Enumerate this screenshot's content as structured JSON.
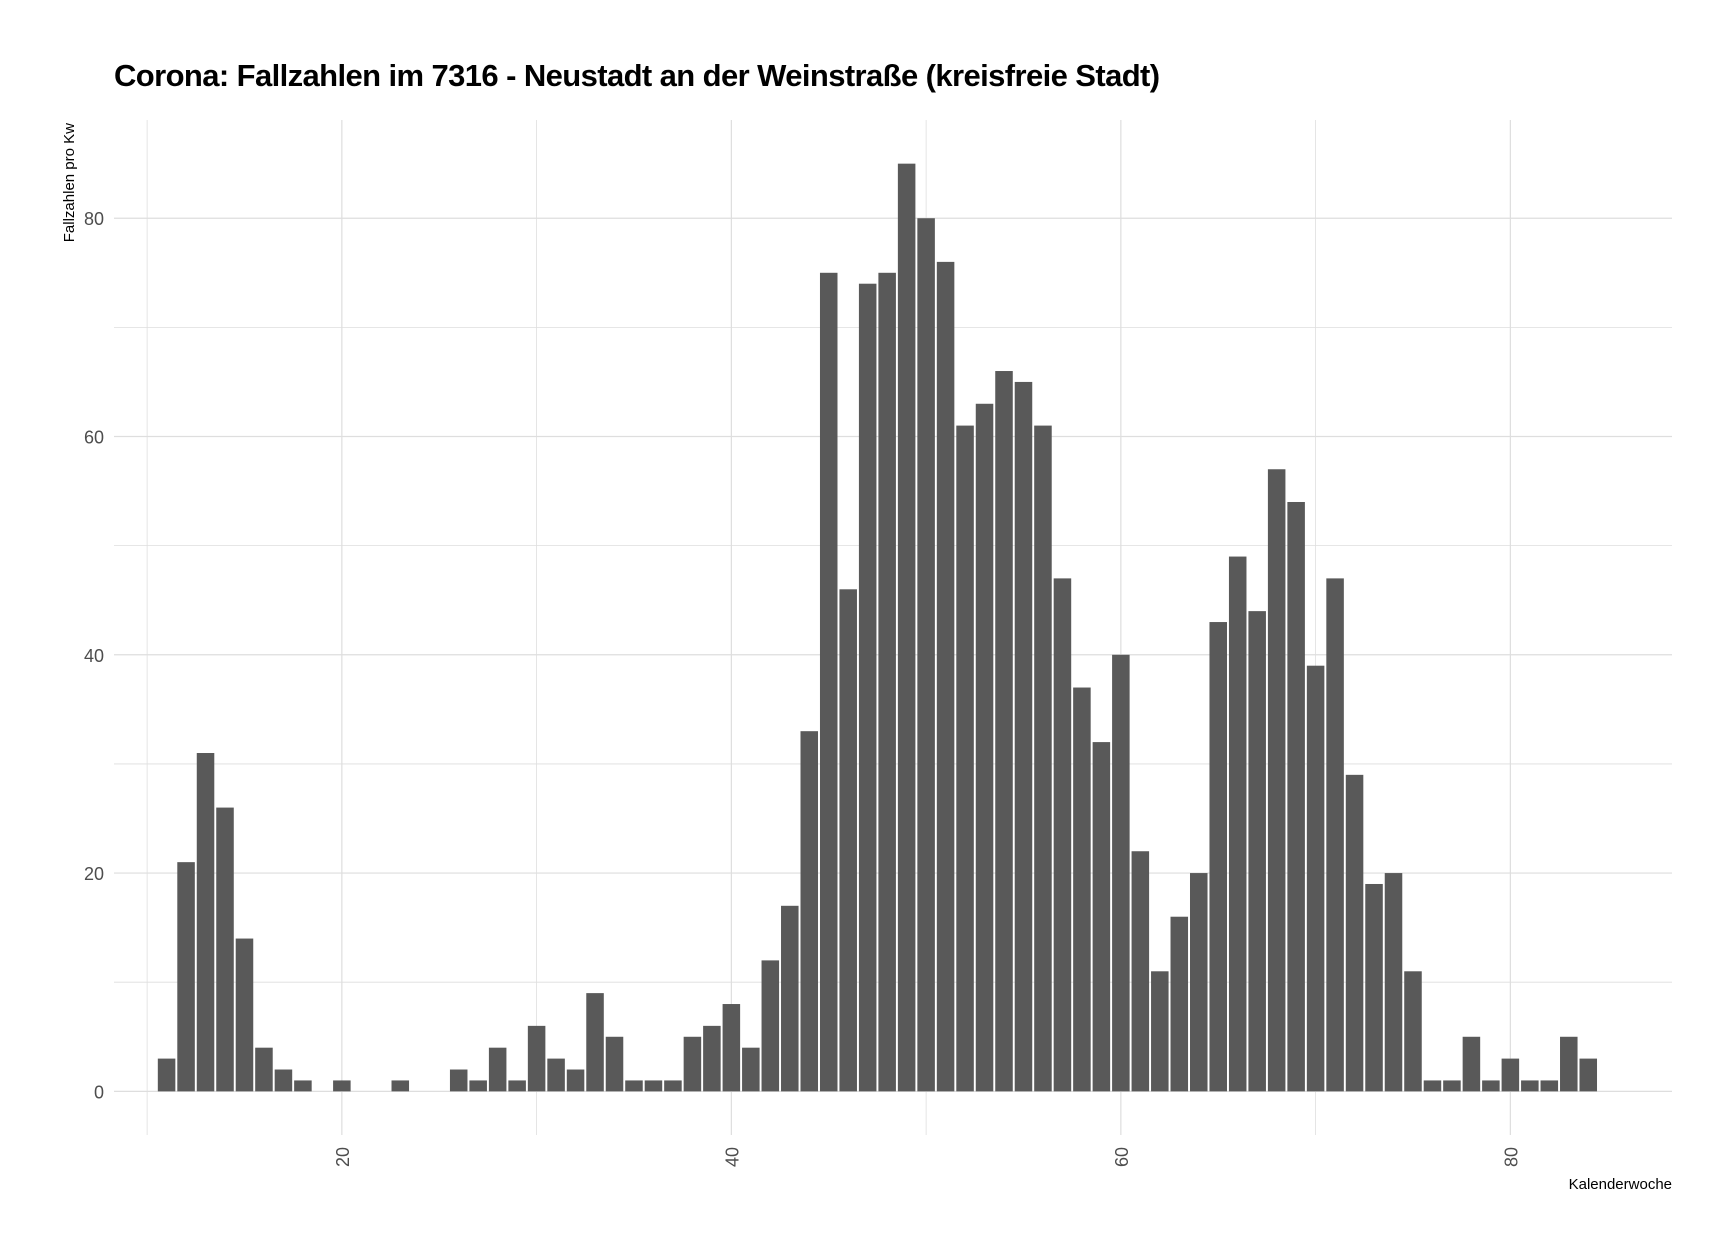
{
  "chart_data": {
    "type": "bar",
    "title": "Corona: Fallzahlen im 7316 - Neustadt an der Weinstraße (kreisfreie Stadt)",
    "xlabel": "Kalenderwoche",
    "ylabel": "Fallzahlen pro Kw",
    "xlim": [
      8.3,
      88.3
    ],
    "ylim": [
      -4,
      89
    ],
    "x_ticks": [
      20,
      40,
      60,
      80
    ],
    "y_ticks": [
      0,
      20,
      40,
      60,
      80
    ],
    "grid": true,
    "legend": "none",
    "bar_color": "#595959",
    "x": [
      11,
      12,
      13,
      14,
      15,
      16,
      17,
      18,
      19,
      20,
      21,
      22,
      23,
      24,
      25,
      26,
      27,
      28,
      29,
      30,
      31,
      32,
      33,
      34,
      35,
      36,
      37,
      38,
      39,
      40,
      41,
      42,
      43,
      44,
      45,
      46,
      47,
      48,
      49,
      50,
      51,
      52,
      53,
      54,
      55,
      56,
      57,
      58,
      59,
      60,
      61,
      62,
      63,
      64,
      65,
      66,
      67,
      68,
      69,
      70,
      71,
      72,
      73,
      74,
      75,
      76,
      77,
      78,
      79,
      80,
      81,
      82,
      83,
      84
    ],
    "values": [
      3,
      21,
      31,
      26,
      14,
      4,
      2,
      1,
      0,
      1,
      0,
      0,
      1,
      0,
      0,
      2,
      1,
      4,
      1,
      6,
      3,
      2,
      9,
      5,
      1,
      1,
      1,
      5,
      6,
      8,
      4,
      12,
      17,
      33,
      75,
      46,
      74,
      75,
      85,
      80,
      76,
      61,
      63,
      66,
      65,
      61,
      47,
      37,
      32,
      40,
      22,
      11,
      16,
      20,
      43,
      49,
      44,
      57,
      54,
      39,
      47,
      29,
      19,
      20,
      11,
      1,
      1,
      5,
      1,
      3,
      1,
      1,
      5,
      3
    ]
  }
}
